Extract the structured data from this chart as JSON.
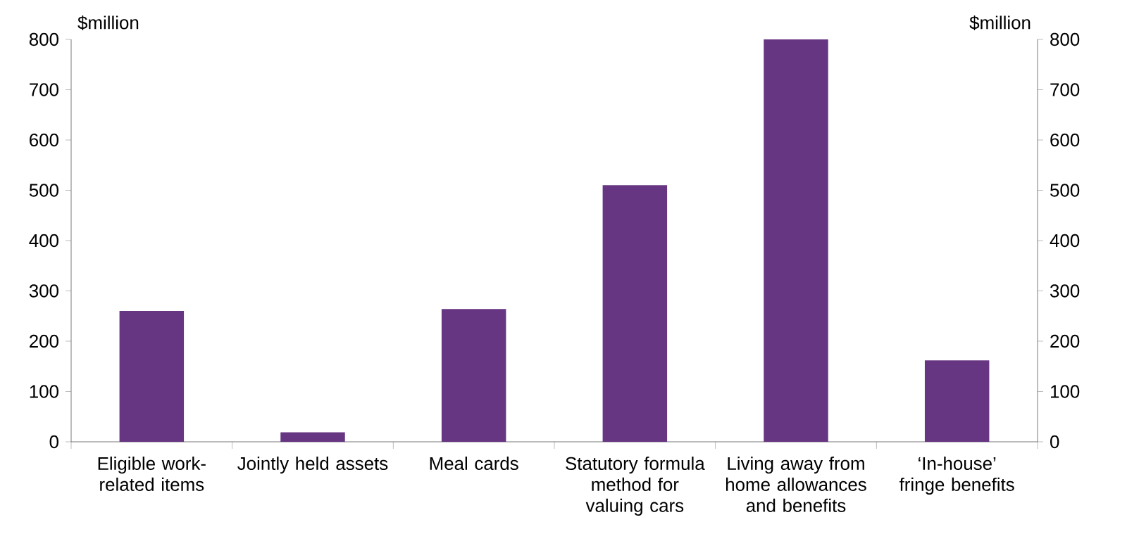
{
  "chart_data": {
    "type": "bar",
    "ylabel": "$million",
    "y2label": "$million",
    "categories": [
      "Eligible work-related items",
      "Jointly held assets",
      "Meal cards",
      "Statutory formula method for valuing cars",
      "Living away from home allowances and benefits",
      "‘In-house’ fringe benefits"
    ],
    "values": [
      260,
      19,
      264,
      510,
      800,
      162
    ],
    "color": "#663682",
    "ylim": [
      0,
      800
    ],
    "yticks": [
      0,
      100,
      200,
      300,
      400,
      500,
      600,
      700,
      800
    ],
    "y2lim": [
      0,
      800
    ],
    "y2ticks": [
      0,
      100,
      200,
      300,
      400,
      500,
      600,
      700,
      800
    ]
  }
}
